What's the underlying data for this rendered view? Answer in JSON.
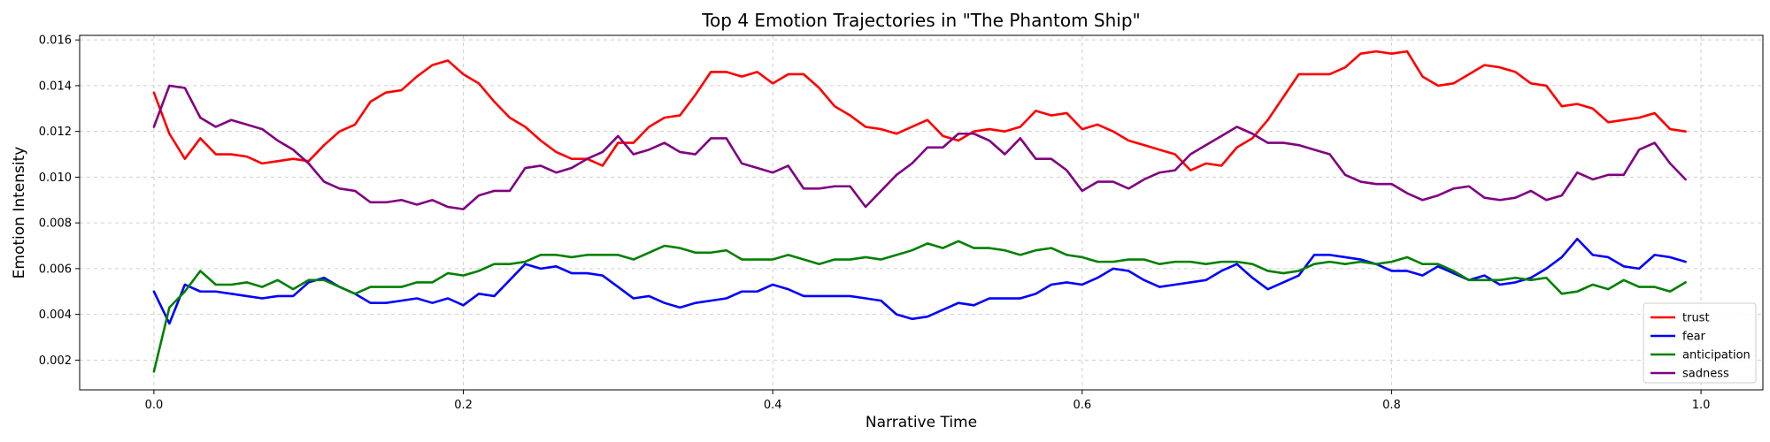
{
  "chart_data": {
    "type": "line",
    "title": "Top 4 Emotion Trajectories in \"The Phantom Ship\"",
    "xlabel": "Narrative Time",
    "ylabel": "Emotion Intensity",
    "xlim": [
      -0.048,
      1.04
    ],
    "ylim": [
      0.0007,
      0.0162
    ],
    "xticks": [
      0.0,
      0.2,
      0.4,
      0.6,
      0.8,
      1.0
    ],
    "xtick_labels": [
      "0.0",
      "0.2",
      "0.4",
      "0.6",
      "0.8",
      "1.0"
    ],
    "yticks": [
      0.002,
      0.004,
      0.006,
      0.008,
      0.01,
      0.012,
      0.014,
      0.016
    ],
    "ytick_labels": [
      "0.002",
      "0.004",
      "0.006",
      "0.008",
      "0.010",
      "0.012",
      "0.014",
      "0.016"
    ],
    "grid": true,
    "legend_position": "bottom-right",
    "x_start": 0.0,
    "x_step": 0.01,
    "series": [
      {
        "name": "trust",
        "color": "#ff0000",
        "values": [
          0.0137,
          0.0119,
          0.0108,
          0.0117,
          0.011,
          0.011,
          0.0109,
          0.0106,
          0.0107,
          0.0108,
          0.0107,
          0.0114,
          0.012,
          0.0123,
          0.0133,
          0.0137,
          0.0138,
          0.0144,
          0.0149,
          0.0151,
          0.0145,
          0.0141,
          0.0133,
          0.0126,
          0.0122,
          0.0116,
          0.0111,
          0.0108,
          0.0108,
          0.0105,
          0.0115,
          0.0115,
          0.0122,
          0.0126,
          0.0127,
          0.0136,
          0.0146,
          0.0146,
          0.0144,
          0.0146,
          0.0141,
          0.0145,
          0.0145,
          0.0139,
          0.0131,
          0.0127,
          0.0122,
          0.0121,
          0.0119,
          0.0122,
          0.0125,
          0.0118,
          0.0116,
          0.012,
          0.0121,
          0.012,
          0.0122,
          0.0129,
          0.0127,
          0.0128,
          0.0121,
          0.0123,
          0.012,
          0.0116,
          0.0114,
          0.0112,
          0.011,
          0.0103,
          0.0106,
          0.0105,
          0.0113,
          0.0117,
          0.0125,
          0.0135,
          0.0145,
          0.0145,
          0.0145,
          0.0148,
          0.0154,
          0.0155,
          0.0154,
          0.0155,
          0.0144,
          0.014,
          0.0141,
          0.0145,
          0.0149,
          0.0148,
          0.0146,
          0.0141,
          0.014,
          0.0131,
          0.0132,
          0.013,
          0.0124,
          0.0125,
          0.0126,
          0.0128,
          0.0121,
          0.012
        ]
      },
      {
        "name": "fear",
        "color": "#0000ff",
        "values": [
          0.005,
          0.0036,
          0.0053,
          0.005,
          0.005,
          0.0049,
          0.0048,
          0.0047,
          0.0048,
          0.0048,
          0.0054,
          0.0056,
          0.0052,
          0.0049,
          0.0045,
          0.0045,
          0.0046,
          0.0047,
          0.0045,
          0.0047,
          0.0044,
          0.0049,
          0.0048,
          0.0055,
          0.0062,
          0.006,
          0.0061,
          0.0058,
          0.0058,
          0.0057,
          0.0052,
          0.0047,
          0.0048,
          0.0045,
          0.0043,
          0.0045,
          0.0046,
          0.0047,
          0.005,
          0.005,
          0.0053,
          0.0051,
          0.0048,
          0.0048,
          0.0048,
          0.0048,
          0.0047,
          0.0046,
          0.004,
          0.0038,
          0.0039,
          0.0042,
          0.0045,
          0.0044,
          0.0047,
          0.0047,
          0.0047,
          0.0049,
          0.0053,
          0.0054,
          0.0053,
          0.0056,
          0.006,
          0.0059,
          0.0055,
          0.0052,
          0.0053,
          0.0054,
          0.0055,
          0.0059,
          0.0062,
          0.0056,
          0.0051,
          0.0054,
          0.0057,
          0.0066,
          0.0066,
          0.0065,
          0.0064,
          0.0062,
          0.0059,
          0.0059,
          0.0057,
          0.0061,
          0.0058,
          0.0055,
          0.0057,
          0.0053,
          0.0054,
          0.0056,
          0.006,
          0.0065,
          0.0073,
          0.0066,
          0.0065,
          0.0061,
          0.006,
          0.0066,
          0.0065,
          0.0063
        ]
      },
      {
        "name": "anticipation",
        "color": "#008000",
        "values": [
          0.0015,
          0.0043,
          0.005,
          0.0059,
          0.0053,
          0.0053,
          0.0054,
          0.0052,
          0.0055,
          0.0051,
          0.0055,
          0.0055,
          0.0052,
          0.0049,
          0.0052,
          0.0052,
          0.0052,
          0.0054,
          0.0054,
          0.0058,
          0.0057,
          0.0059,
          0.0062,
          0.0062,
          0.0063,
          0.0066,
          0.0066,
          0.0065,
          0.0066,
          0.0066,
          0.0066,
          0.0064,
          0.0067,
          0.007,
          0.0069,
          0.0067,
          0.0067,
          0.0068,
          0.0064,
          0.0064,
          0.0064,
          0.0066,
          0.0064,
          0.0062,
          0.0064,
          0.0064,
          0.0065,
          0.0064,
          0.0066,
          0.0068,
          0.0071,
          0.0069,
          0.0072,
          0.0069,
          0.0069,
          0.0068,
          0.0066,
          0.0068,
          0.0069,
          0.0066,
          0.0065,
          0.0063,
          0.0063,
          0.0064,
          0.0064,
          0.0062,
          0.0063,
          0.0063,
          0.0062,
          0.0063,
          0.0063,
          0.0062,
          0.0059,
          0.0058,
          0.0059,
          0.0062,
          0.0063,
          0.0062,
          0.0063,
          0.0062,
          0.0063,
          0.0065,
          0.0062,
          0.0062,
          0.0059,
          0.0055,
          0.0055,
          0.0055,
          0.0056,
          0.0055,
          0.0056,
          0.0049,
          0.005,
          0.0053,
          0.0051,
          0.0055,
          0.0052,
          0.0052,
          0.005,
          0.0054
        ]
      },
      {
        "name": "sadness",
        "color": "#800080",
        "values": [
          0.0122,
          0.014,
          0.0139,
          0.0126,
          0.0122,
          0.0125,
          0.0123,
          0.0121,
          0.0116,
          0.0112,
          0.0106,
          0.0098,
          0.0095,
          0.0094,
          0.0089,
          0.0089,
          0.009,
          0.0088,
          0.009,
          0.0087,
          0.0086,
          0.0092,
          0.0094,
          0.0094,
          0.0104,
          0.0105,
          0.0102,
          0.0104,
          0.0108,
          0.0111,
          0.0118,
          0.011,
          0.0112,
          0.0115,
          0.0111,
          0.011,
          0.0117,
          0.0117,
          0.0106,
          0.0104,
          0.0102,
          0.0105,
          0.0095,
          0.0095,
          0.0096,
          0.0096,
          0.0087,
          0.0094,
          0.0101,
          0.0106,
          0.0113,
          0.0113,
          0.0119,
          0.0119,
          0.0116,
          0.011,
          0.0117,
          0.0108,
          0.0108,
          0.0103,
          0.0094,
          0.0098,
          0.0098,
          0.0095,
          0.0099,
          0.0102,
          0.0103,
          0.011,
          0.0114,
          0.0118,
          0.0122,
          0.0119,
          0.0115,
          0.0115,
          0.0114,
          0.0112,
          0.011,
          0.0101,
          0.0098,
          0.0097,
          0.0097,
          0.0093,
          0.009,
          0.0092,
          0.0095,
          0.0096,
          0.0091,
          0.009,
          0.0091,
          0.0094,
          0.009,
          0.0092,
          0.0102,
          0.0099,
          0.0101,
          0.0101,
          0.0112,
          0.0115,
          0.0106,
          0.0099
        ]
      }
    ]
  }
}
